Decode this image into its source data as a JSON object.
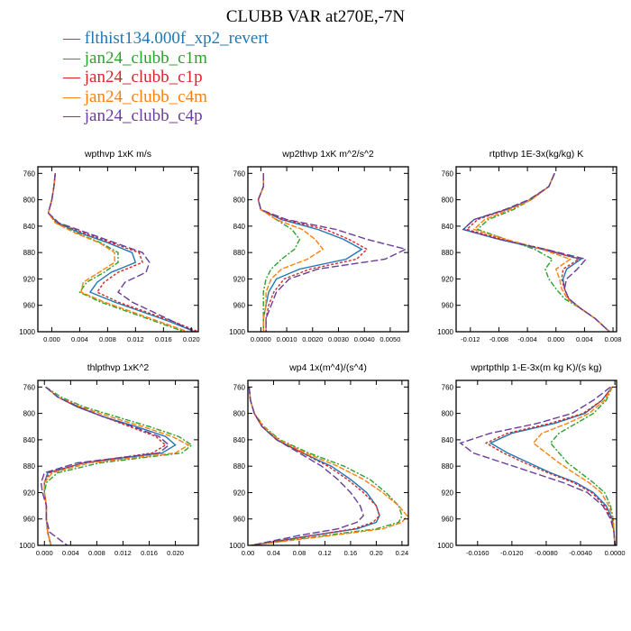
{
  "title": "CLUBB VAR at270E,-7N",
  "legend": [
    {
      "name": "flthist134.000f_xp2_revert",
      "color": "#1f77b4",
      "dash": ""
    },
    {
      "name": "jan24_clubb_c1m",
      "color": "#2ca02c",
      "dash": "6,2,2,2"
    },
    {
      "name": "jan24_clubb_c1p",
      "color": "#d62728",
      "dash": "3,2"
    },
    {
      "name": "jan24_clubb_c4m",
      "color": "#ff7f0e",
      "dash": "6,2"
    },
    {
      "name": "jan24_clubb_c4p",
      "color": "#6a3d9a",
      "dash": "8,3"
    }
  ],
  "chart_data": [
    {
      "type": "line",
      "title": "wpthvp  1xK m/s",
      "xlim": [
        -0.002,
        0.021
      ],
      "ylim": [
        750,
        1000
      ],
      "y_reversed": true,
      "xticks": [
        "0.000",
        "0.004",
        "0.008",
        "0.012",
        "0.016",
        "0.020"
      ],
      "xtick_values": [
        0,
        0.004,
        0.008,
        0.012,
        0.016,
        0.02
      ],
      "yticks": [
        "760",
        "800",
        "840",
        "880",
        "920",
        "960",
        "1000"
      ],
      "y": [
        760,
        780,
        800,
        820,
        835,
        850,
        865,
        880,
        895,
        910,
        925,
        940,
        955,
        970,
        985,
        1000
      ],
      "series": [
        {
          "name": "flthist134.000f_xp2_revert",
          "values": [
            0.0005,
            0.0003,
            0.0,
            -0.0005,
            0.0008,
            0.004,
            0.008,
            0.0115,
            0.012,
            0.0085,
            0.0065,
            0.0055,
            0.009,
            0.013,
            0.017,
            0.0205
          ]
        },
        {
          "name": "jan24_clubb_c1m",
          "values": [
            0.0005,
            0.0003,
            0.0,
            -0.0005,
            0.0006,
            0.0035,
            0.007,
            0.0095,
            0.0095,
            0.0075,
            0.005,
            0.004,
            0.007,
            0.011,
            0.015,
            0.019
          ]
        },
        {
          "name": "jan24_clubb_c1p",
          "values": [
            0.0005,
            0.0003,
            0.0,
            -0.0005,
            0.0008,
            0.0045,
            0.0085,
            0.0125,
            0.013,
            0.0095,
            0.0075,
            0.0065,
            0.0095,
            0.0135,
            0.0175,
            0.021
          ]
        },
        {
          "name": "jan24_clubb_c4m",
          "values": [
            0.0005,
            0.0003,
            0.0,
            -0.0005,
            0.0005,
            0.0033,
            0.0068,
            0.009,
            0.009,
            0.0068,
            0.0045,
            0.0042,
            0.0075,
            0.0115,
            0.0155,
            0.0195
          ]
        },
        {
          "name": "jan24_clubb_c4p",
          "values": [
            0.0005,
            0.0003,
            0.0,
            -0.0005,
            0.001,
            0.005,
            0.009,
            0.013,
            0.014,
            0.0135,
            0.0105,
            0.0095,
            0.0115,
            0.0145,
            0.0175,
            0.0205
          ]
        }
      ]
    },
    {
      "type": "line",
      "title": "wp2thvp  1xK m^2/s^2",
      "xlim": [
        -0.0005,
        0.0057
      ],
      "ylim": [
        750,
        1000
      ],
      "y_reversed": true,
      "xticks": [
        "0.0000",
        "0.0010",
        "0.0020",
        "0.0030",
        "0.0040",
        "0.0050"
      ],
      "xtick_values": [
        0,
        0.001,
        0.002,
        0.003,
        0.004,
        0.005
      ],
      "yticks": [
        "760",
        "800",
        "840",
        "880",
        "920",
        "960",
        "1000"
      ],
      "y": [
        760,
        780,
        800,
        815,
        830,
        845,
        860,
        875,
        890,
        905,
        920,
        940,
        960,
        980,
        1000
      ],
      "series": [
        {
          "name": "flthist134.000f_xp2_revert",
          "values": [
            0.0001,
            0.0001,
            -0.0001,
            0.0,
            0.0008,
            0.0022,
            0.0032,
            0.0039,
            0.0033,
            0.0015,
            0.0006,
            0.0003,
            0.0002,
            0.0001,
            0.0001
          ]
        },
        {
          "name": "jan24_clubb_c1m",
          "values": [
            0.0001,
            0.0001,
            -0.0001,
            0.0,
            0.0006,
            0.0012,
            0.0015,
            0.0013,
            0.0008,
            0.0004,
            0.0002,
            0.0001,
            0.0001,
            0.0001,
            0.0001
          ]
        },
        {
          "name": "jan24_clubb_c1p",
          "values": [
            0.0001,
            0.0001,
            -0.0001,
            0.0,
            0.0009,
            0.0025,
            0.0034,
            0.0041,
            0.0037,
            0.0019,
            0.0009,
            0.0005,
            0.0003,
            0.0002,
            0.0002
          ]
        },
        {
          "name": "jan24_clubb_c4m",
          "values": [
            0.0001,
            0.0001,
            -0.0001,
            0.0,
            0.0006,
            0.0016,
            0.0021,
            0.0024,
            0.0018,
            0.0008,
            0.0004,
            0.0002,
            0.0002,
            0.0001,
            0.0001
          ]
        },
        {
          "name": "jan24_clubb_c4p",
          "values": [
            0.0001,
            0.0001,
            -0.0001,
            0.0,
            0.001,
            0.0029,
            0.0041,
            0.0056,
            0.0048,
            0.0022,
            0.0011,
            0.0006,
            0.0004,
            0.0002,
            0.0002
          ]
        }
      ]
    },
    {
      "type": "line",
      "title": "rtpthvp  1E-3x(kg/kg) K",
      "xlim": [
        -0.014,
        0.0085
      ],
      "ylim": [
        750,
        1000
      ],
      "y_reversed": true,
      "xticks": [
        "-0.012",
        "-0.008",
        "-0.004",
        "0.000",
        "0.004",
        "0.008"
      ],
      "xtick_values": [
        -0.012,
        -0.008,
        -0.004,
        0,
        0.004,
        0.008
      ],
      "yticks": [
        "760",
        "800",
        "840",
        "880",
        "920",
        "960",
        "1000"
      ],
      "y": [
        760,
        780,
        800,
        815,
        830,
        845,
        860,
        875,
        890,
        905,
        920,
        935,
        950,
        965,
        980,
        1000
      ],
      "series": [
        {
          "name": "flthist134.000f_xp2_revert",
          "values": [
            -0.0002,
            -0.001,
            -0.0035,
            -0.007,
            -0.0115,
            -0.013,
            -0.008,
            -0.002,
            0.0035,
            0.0015,
            0.001,
            0.0012,
            0.0018,
            0.0035,
            0.0055,
            0.0075
          ]
        },
        {
          "name": "jan24_clubb_c1m",
          "values": [
            -0.0002,
            -0.001,
            -0.0035,
            -0.006,
            -0.0095,
            -0.011,
            -0.007,
            -0.003,
            -0.0005,
            -0.0015,
            -0.001,
            0.0,
            0.0012,
            0.0035,
            0.0055,
            0.0075
          ]
        },
        {
          "name": "jan24_clubb_c1p",
          "values": [
            -0.0002,
            -0.001,
            -0.0037,
            -0.007,
            -0.011,
            -0.0125,
            -0.0075,
            -0.0015,
            0.0032,
            0.001,
            0.0008,
            0.0012,
            0.0018,
            0.0035,
            0.0055,
            0.0075
          ]
        },
        {
          "name": "jan24_clubb_c4m",
          "values": [
            -0.0002,
            -0.001,
            -0.0035,
            -0.0065,
            -0.01,
            -0.0115,
            -0.007,
            -0.002,
            0.002,
            0.0,
            0.0005,
            0.0008,
            0.0016,
            0.0035,
            0.0055,
            0.0075
          ]
        },
        {
          "name": "jan24_clubb_c4p",
          "values": [
            -0.0002,
            -0.001,
            -0.0038,
            -0.0072,
            -0.0115,
            -0.013,
            -0.008,
            -0.0015,
            0.0042,
            0.003,
            0.0015,
            0.0012,
            0.0018,
            0.0035,
            0.0055,
            0.0075
          ]
        }
      ]
    },
    {
      "type": "line",
      "title": "thlpthvp  1xK^2",
      "xlim": [
        -0.001,
        0.0235
      ],
      "ylim": [
        750,
        1000
      ],
      "y_reversed": true,
      "xticks": [
        "0.000",
        "0.004",
        "0.008",
        "0.012",
        "0.016",
        "0.020"
      ],
      "xtick_values": [
        0,
        0.004,
        0.008,
        0.012,
        0.016,
        0.02
      ],
      "yticks": [
        "760",
        "800",
        "840",
        "880",
        "920",
        "960",
        "1000"
      ],
      "y": [
        760,
        775,
        790,
        805,
        820,
        835,
        848,
        860,
        875,
        890,
        905,
        920,
        940,
        960,
        980,
        1000
      ],
      "series": [
        {
          "name": "flthist134.000f_xp2_revert",
          "values": [
            0.0002,
            0.002,
            0.005,
            0.009,
            0.014,
            0.0185,
            0.02,
            0.018,
            0.006,
            0.0005,
            0.0,
            0.0,
            0.0003,
            0.0003,
            0.0005,
            0.001
          ]
        },
        {
          "name": "jan24_clubb_c1m",
          "values": [
            0.0002,
            0.0025,
            0.006,
            0.011,
            0.016,
            0.0205,
            0.0225,
            0.021,
            0.0085,
            0.002,
            0.0003,
            0.0,
            0.0003,
            0.0003,
            0.0005,
            0.001
          ]
        },
        {
          "name": "jan24_clubb_c1p",
          "values": [
            0.0002,
            0.002,
            0.005,
            0.009,
            0.013,
            0.017,
            0.0185,
            0.0165,
            0.006,
            0.0008,
            0.0,
            0.0,
            0.0003,
            0.0003,
            0.0005,
            0.001
          ]
        },
        {
          "name": "jan24_clubb_c4m",
          "values": [
            0.0002,
            0.002,
            0.0055,
            0.01,
            0.015,
            0.0195,
            0.022,
            0.02,
            0.007,
            0.0012,
            0.0,
            0.0,
            0.0003,
            0.0003,
            0.0005,
            0.001
          ]
        },
        {
          "name": "jan24_clubb_c4p",
          "values": [
            0.0002,
            0.002,
            0.0052,
            0.009,
            0.0135,
            0.0175,
            0.019,
            0.0175,
            0.005,
            0.0,
            -0.0005,
            -0.0003,
            0.0003,
            0.0003,
            0.0008,
            0.0035
          ]
        }
      ]
    },
    {
      "type": "line",
      "title": "wp4  1x(m^4)/(s^4)",
      "xlim": [
        0.0,
        0.25
      ],
      "ylim": [
        750,
        1000
      ],
      "y_reversed": true,
      "xticks": [
        "0.00",
        "0.04",
        "0.08",
        "0.12",
        "0.16",
        "0.20",
        "0.24"
      ],
      "xtick_values": [
        0,
        0.04,
        0.08,
        0.12,
        0.16,
        0.2,
        0.24
      ],
      "yticks": [
        "760",
        "800",
        "840",
        "880",
        "920",
        "960",
        "1000"
      ],
      "y": [
        760,
        780,
        800,
        820,
        840,
        860,
        880,
        900,
        920,
        940,
        955,
        965,
        975,
        985,
        1000
      ],
      "series": [
        {
          "name": "flthist134.000f_xp2_revert",
          "values": [
            0.002,
            0.004,
            0.01,
            0.022,
            0.045,
            0.085,
            0.13,
            0.16,
            0.185,
            0.2,
            0.205,
            0.2,
            0.17,
            0.1,
            0.005
          ]
        },
        {
          "name": "jan24_clubb_c1m",
          "values": [
            0.002,
            0.004,
            0.01,
            0.025,
            0.05,
            0.095,
            0.15,
            0.19,
            0.215,
            0.235,
            0.24,
            0.235,
            0.2,
            0.12,
            0.005
          ]
        },
        {
          "name": "jan24_clubb_c1p",
          "values": [
            0.002,
            0.004,
            0.01,
            0.022,
            0.045,
            0.085,
            0.125,
            0.155,
            0.18,
            0.2,
            0.205,
            0.195,
            0.165,
            0.1,
            0.005
          ]
        },
        {
          "name": "jan24_clubb_c4m",
          "values": [
            0.002,
            0.004,
            0.01,
            0.024,
            0.048,
            0.09,
            0.14,
            0.18,
            0.21,
            0.235,
            0.248,
            0.24,
            0.21,
            0.13,
            0.005
          ]
        },
        {
          "name": "jan24_clubb_c4p",
          "values": [
            0.002,
            0.004,
            0.01,
            0.022,
            0.045,
            0.08,
            0.115,
            0.14,
            0.16,
            0.175,
            0.18,
            0.17,
            0.14,
            0.08,
            0.005
          ]
        }
      ]
    },
    {
      "type": "line",
      "title": "wprtpthlp  1-E-3x(m kg K)/(s kg)",
      "xlim": [
        -0.0185,
        0.0002
      ],
      "ylim": [
        750,
        1000
      ],
      "y_reversed": true,
      "xticks": [
        "-0.0160",
        "-0.0120",
        "-0.0080",
        "-0.0040",
        "0.0000"
      ],
      "xtick_values": [
        -0.016,
        -0.012,
        -0.008,
        -0.004,
        0
      ],
      "yticks": [
        "760",
        "800",
        "840",
        "880",
        "920",
        "960",
        "1000"
      ],
      "y": [
        760,
        780,
        800,
        815,
        830,
        845,
        860,
        875,
        890,
        905,
        920,
        940,
        960,
        980,
        1000
      ],
      "series": [
        {
          "name": "flthist134.000f_xp2_revert",
          "values": [
            -0.0003,
            -0.0015,
            -0.0035,
            -0.007,
            -0.012,
            -0.0145,
            -0.0125,
            -0.01,
            -0.0075,
            -0.0045,
            -0.0025,
            -0.001,
            -0.0003,
            -0.0001,
            0.0
          ]
        },
        {
          "name": "jan24_clubb_c1m",
          "values": [
            -0.0003,
            -0.001,
            -0.0025,
            -0.0045,
            -0.0065,
            -0.0075,
            -0.0065,
            -0.0055,
            -0.004,
            -0.0025,
            -0.0012,
            -0.0005,
            -0.0002,
            -0.0001,
            0.0
          ]
        },
        {
          "name": "jan24_clubb_c1p",
          "values": [
            -0.0003,
            -0.0015,
            -0.0037,
            -0.0075,
            -0.0125,
            -0.015,
            -0.013,
            -0.0105,
            -0.0078,
            -0.0048,
            -0.0027,
            -0.0012,
            -0.0004,
            -0.0001,
            0.0
          ]
        },
        {
          "name": "jan24_clubb_c4m",
          "values": [
            -0.0003,
            -0.0012,
            -0.003,
            -0.0055,
            -0.0085,
            -0.0095,
            -0.008,
            -0.0065,
            -0.0048,
            -0.003,
            -0.0016,
            -0.0007,
            -0.0002,
            -0.0001,
            0.0
          ]
        },
        {
          "name": "jan24_clubb_c4p",
          "values": [
            -0.0005,
            -0.0025,
            -0.005,
            -0.009,
            -0.0145,
            -0.018,
            -0.0165,
            -0.013,
            -0.0095,
            -0.006,
            -0.0032,
            -0.0014,
            -0.0005,
            -0.0001,
            0.0
          ]
        }
      ]
    }
  ]
}
